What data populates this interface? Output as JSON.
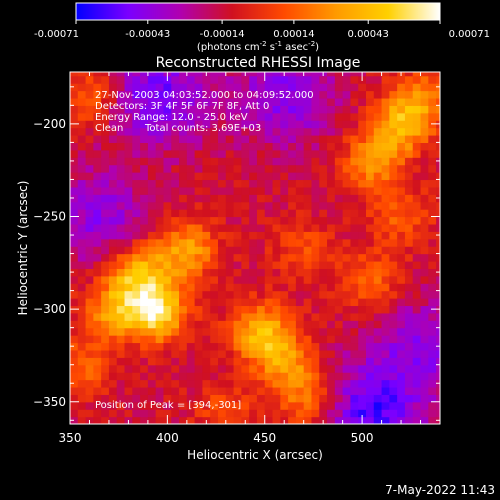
{
  "chart_data": {
    "type": "heatmap",
    "title": "Reconstructed RHESSI Image",
    "xlabel": "Heliocentric X (arcsec)",
    "ylabel": "Heliocentric Y (arcsec)",
    "xlim": [
      350,
      540
    ],
    "ylim": [
      -362,
      -172
    ],
    "x_ticks": [
      350,
      400,
      450,
      500
    ],
    "y_ticks": [
      -200,
      -250,
      -300,
      -350
    ],
    "colorbar": {
      "range": [
        -0.00071,
        0.00071
      ],
      "ticks": [
        "-0.00071",
        "-0.00043",
        "-0.00014",
        "0.00014",
        "0.00043",
        "0.00071"
      ],
      "ticks_values": [
        -0.00071,
        -0.00043,
        -0.00014,
        0.00014,
        0.00043,
        0.00071
      ],
      "units_text": "(photons cm",
      "units_exp1": "-2",
      "units_mid": " s",
      "units_exp2": "-1",
      "units_mid2": " asec",
      "units_exp3": "-2",
      "units_end": ")",
      "colormap": [
        "#0000ff",
        "#7a00ff",
        "#b000b0",
        "#d01020",
        "#ff4a00",
        "#ff9a00",
        "#ffd000",
        "#ffffff"
      ]
    },
    "annotations": {
      "time": "27-Nov-2003 04:03:52.000 to 04:09:52.000",
      "detectors": "Detectors: 3F 4F 5F 6F 7F 8F, Att 0",
      "energy": "Energy Range: 12.0 - 25.0 keV",
      "method": "Clean",
      "counts": "Total counts: 3.69E+03",
      "peak": "Position of Peak = [394,-301]"
    },
    "peak": [
      394,
      -301
    ],
    "sources": [
      {
        "x": 394,
        "y": -301,
        "value": 0.00071
      },
      {
        "x": 385,
        "y": -280,
        "value": 0.00052
      },
      {
        "x": 410,
        "y": -268,
        "value": 0.00045
      },
      {
        "x": 372,
        "y": -300,
        "value": 0.0004
      },
      {
        "x": 448,
        "y": -312,
        "value": 0.0005
      },
      {
        "x": 460,
        "y": -328,
        "value": 0.00038
      },
      {
        "x": 472,
        "y": -348,
        "value": 0.00034
      },
      {
        "x": 520,
        "y": -200,
        "value": 0.00048
      },
      {
        "x": 505,
        "y": -220,
        "value": 0.0004
      },
      {
        "x": 532,
        "y": -185,
        "value": 0.00032
      },
      {
        "x": 360,
        "y": -185,
        "value": 0.0003
      },
      {
        "x": 355,
        "y": -330,
        "value": 0.00028
      },
      {
        "x": 505,
        "y": -285,
        "value": 0.0003
      },
      {
        "x": 520,
        "y": -250,
        "value": 0.00025
      },
      {
        "x": 470,
        "y": -268,
        "value": 0.00022
      },
      {
        "x": 430,
        "y": -355,
        "value": 0.0002
      }
    ],
    "minima": [
      {
        "x": 395,
        "y": -185,
        "value": -0.0004
      },
      {
        "x": 460,
        "y": -185,
        "value": -0.00035
      },
      {
        "x": 505,
        "y": -355,
        "value": -0.00045
      },
      {
        "x": 365,
        "y": -250,
        "value": -0.0003
      },
      {
        "x": 530,
        "y": -320,
        "value": -0.0003
      }
    ]
  },
  "footer": {
    "date": "7-May-2022 11:43"
  }
}
